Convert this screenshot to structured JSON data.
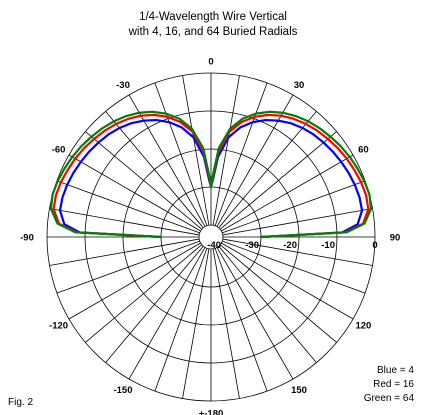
{
  "chart_data": {
    "type": "polar",
    "title": [
      "1/4-Wavelength Wire Vertical",
      "with 4, 16, and 64 Buried Radials"
    ],
    "figure_label": "Fig. 2",
    "angle_labels": [
      {
        "angle": 0,
        "text": "0"
      },
      {
        "angle": 30,
        "text": "30"
      },
      {
        "angle": 60,
        "text": "60"
      },
      {
        "angle": 90,
        "text": "90"
      },
      {
        "angle": 120,
        "text": "120"
      },
      {
        "angle": 150,
        "text": "150"
      },
      {
        "angle": 180,
        "text": "+-180"
      },
      {
        "angle": -150,
        "text": "-150"
      },
      {
        "angle": -120,
        "text": "-120"
      },
      {
        "angle": -90,
        "text": "-90"
      },
      {
        "angle": -60,
        "text": "-60"
      },
      {
        "angle": -30,
        "text": "-30"
      }
    ],
    "radial_labels": [
      "0",
      "-10",
      "-20",
      "-30",
      "-40"
    ],
    "radial_rings_db": [
      0,
      -10,
      -20,
      -30,
      -40
    ],
    "radial_spokes_deg": 10,
    "legend": [
      "Blue = 4",
      "Red = 16",
      "Green = 64"
    ],
    "series": [
      {
        "name": "Blue = 4",
        "color": "#0000ff",
        "elevation_deg": [
          0,
          2,
          5,
          10,
          15,
          20,
          25,
          30,
          35,
          40,
          45,
          50,
          55,
          60,
          65,
          70,
          75,
          80,
          85,
          88,
          90
        ],
        "gain_db": [
          -30,
          -8.6,
          -4.4,
          -2.8,
          -2.7,
          -2.9,
          -3.2,
          -3.6,
          -4.0,
          -4.5,
          -5.0,
          -5.7,
          -6.6,
          -7.8,
          -9.2,
          -11.0,
          -13.3,
          -16.5,
          -22.0,
          -28.0,
          -30
        ]
      },
      {
        "name": "Red = 16",
        "color": "#ff0000",
        "elevation_deg": [
          0,
          2,
          5,
          10,
          15,
          20,
          25,
          30,
          35,
          40,
          45,
          50,
          55,
          60,
          65,
          70,
          75,
          80,
          85,
          88,
          90
        ],
        "gain_db": [
          -30,
          -7.8,
          -3.0,
          -1.1,
          -0.9,
          -1.1,
          -1.5,
          -1.9,
          -2.4,
          -3.0,
          -3.6,
          -4.3,
          -5.2,
          -6.3,
          -7.7,
          -9.5,
          -11.8,
          -15.0,
          -20.5,
          -27.0,
          -30
        ]
      },
      {
        "name": "Green = 64",
        "color": "#008000",
        "elevation_deg": [
          0,
          2,
          5,
          10,
          15,
          20,
          25,
          30,
          35,
          40,
          45,
          50,
          55,
          60,
          65,
          70,
          75,
          80,
          85,
          88,
          90
        ],
        "gain_db": [
          -30,
          -7.4,
          -2.6,
          -0.4,
          0,
          -0.2,
          -0.6,
          -1.0,
          -1.5,
          -2.1,
          -2.7,
          -3.4,
          -4.3,
          -5.4,
          -6.8,
          -8.6,
          -10.9,
          -14.2,
          -19.7,
          -26.5,
          -30
        ]
      }
    ]
  }
}
